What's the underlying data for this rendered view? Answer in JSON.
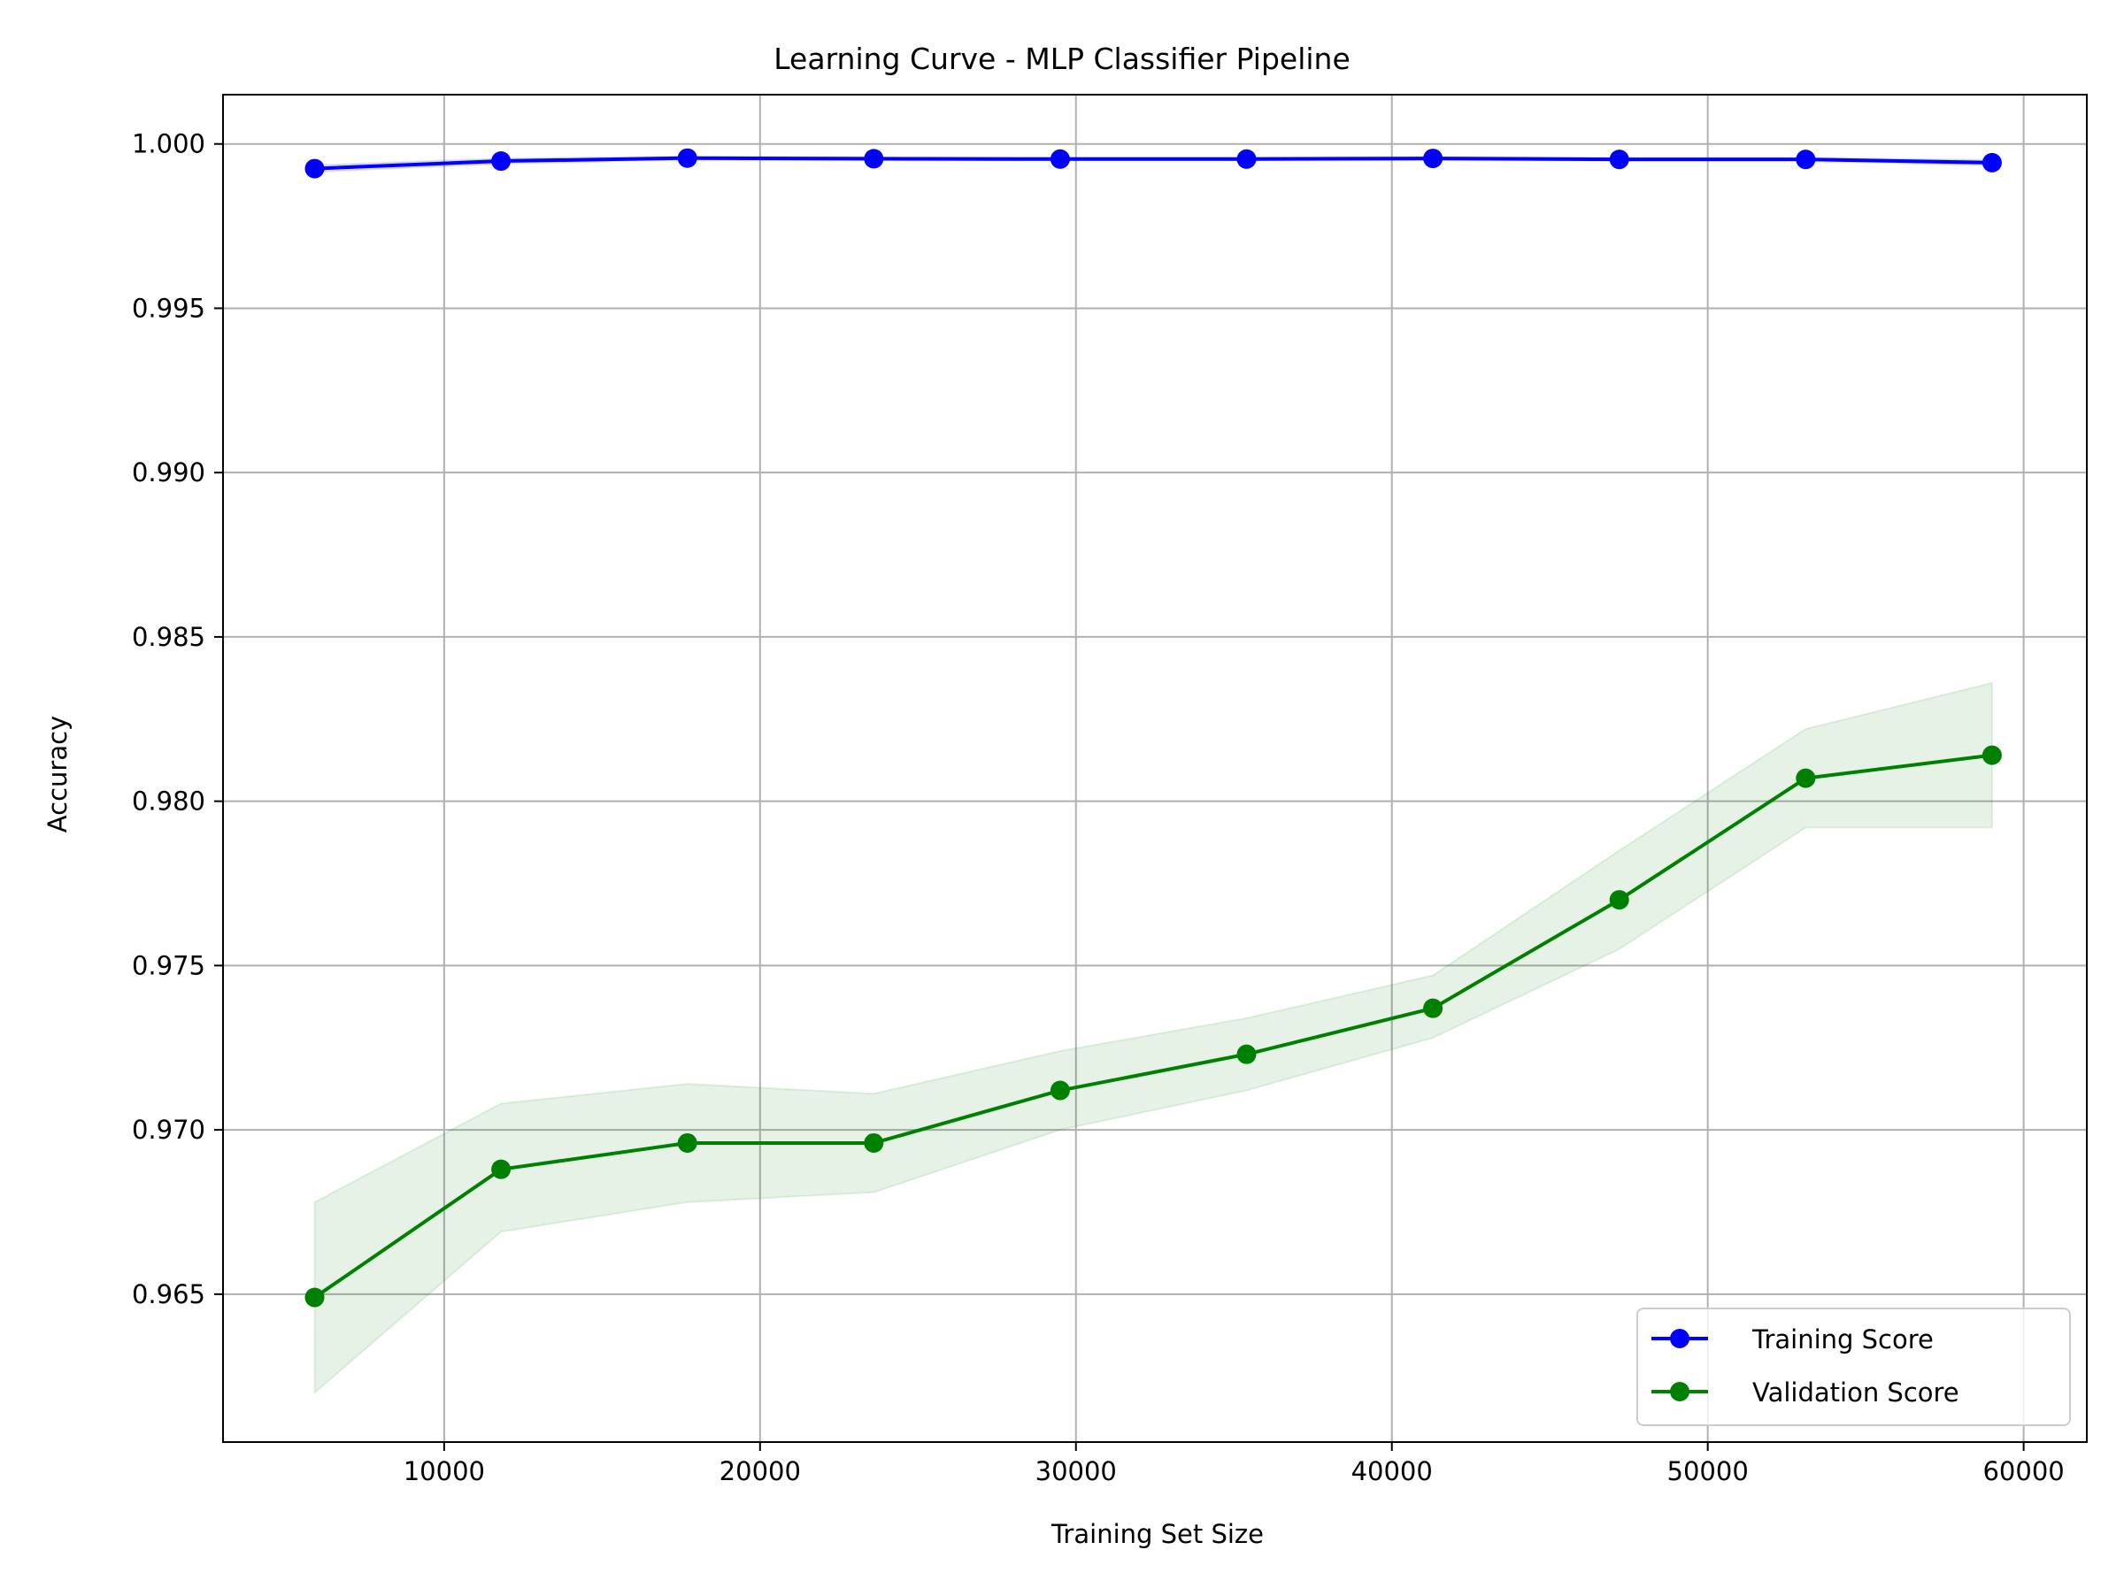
{
  "chart_data": {
    "type": "line",
    "title": "Learning Curve - MLP Classifier Pipeline",
    "xlabel": "Training Set Size",
    "ylabel": "Accuracy",
    "xlim": [
      3000,
      62000
    ],
    "ylim": [
      0.9605,
      1.0015
    ],
    "x_ticks": [
      10000,
      20000,
      30000,
      40000,
      50000,
      60000
    ],
    "x_tick_labels": [
      "10000",
      "20000",
      "30000",
      "40000",
      "50000",
      "60000"
    ],
    "y_ticks": [
      0.965,
      0.97,
      0.975,
      0.98,
      0.985,
      0.99,
      0.995,
      1.0
    ],
    "y_tick_labels": [
      "0.965",
      "0.970",
      "0.975",
      "0.980",
      "0.985",
      "0.990",
      "0.995",
      "1.000"
    ],
    "grid": true,
    "legend_position": "lower-right",
    "x": [
      5900,
      11800,
      17700,
      23600,
      29500,
      35400,
      41300,
      47200,
      53100,
      59000
    ],
    "series": [
      {
        "name": "Training Score",
        "color": "#0000ff",
        "marker": "circle",
        "values": [
          0.99925,
          0.99948,
          0.99957,
          0.99955,
          0.99954,
          0.99954,
          0.99956,
          0.99953,
          0.99953,
          0.99943
        ],
        "band_lower": [
          0.99915,
          0.9994,
          0.99952,
          0.9995,
          0.99949,
          0.99949,
          0.99951,
          0.99948,
          0.99948,
          0.99935
        ],
        "band_upper": [
          0.99935,
          0.99956,
          0.99962,
          0.9996,
          0.99959,
          0.99959,
          0.99961,
          0.99958,
          0.99958,
          0.99951
        ]
      },
      {
        "name": "Validation Score",
        "color": "#008000",
        "marker": "circle",
        "values": [
          0.9649,
          0.9688,
          0.9696,
          0.9696,
          0.9712,
          0.9723,
          0.9737,
          0.977,
          0.9807,
          0.9814
        ],
        "band_lower": [
          0.962,
          0.9669,
          0.9678,
          0.9681,
          0.97,
          0.9712,
          0.9728,
          0.9755,
          0.9792,
          0.9792
        ],
        "band_upper": [
          0.9678,
          0.9708,
          0.9714,
          0.9711,
          0.9724,
          0.9734,
          0.9747,
          0.9785,
          0.9822,
          0.9836
        ]
      }
    ]
  }
}
